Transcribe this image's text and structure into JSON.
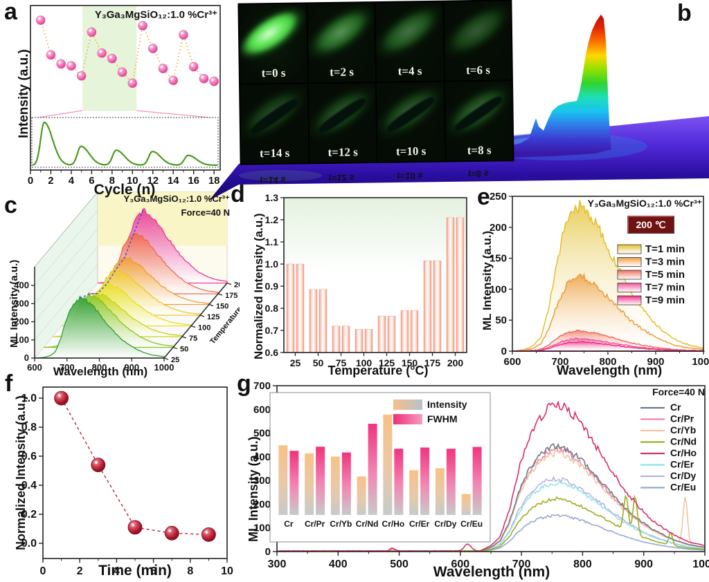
{
  "figure": {
    "panel_letters": {
      "a": "a",
      "b": "b",
      "c": "c",
      "d": "d",
      "e": "e",
      "f": "f",
      "g": "g"
    }
  },
  "panels": {
    "a": {
      "title": "Y₃Ga₃MgSiO₁₂:1.0 %Cr³⁺",
      "xlabel": "Cycle (n)",
      "ylabel": "Intensity (a.u.)"
    },
    "b": {
      "photo_labels": [
        "t=0 s",
        "t=2 s",
        "t=4 s",
        "t=6 s",
        "t=14 s",
        "t=12 s",
        "t=10 s",
        "t=8 s"
      ]
    },
    "c": {
      "formula": "Y₃Ga₃MgSiO₁₂:1.0 %Cr³⁺",
      "force": "Force=40 N",
      "xlabel": "Wavelength (nm)",
      "ylabel": "ML Intensity (a.u.)",
      "zlabel": "Temperature (°C)"
    },
    "d": {
      "xlabel": "Temperature (°C)",
      "ylabel": "Normalized Intensity (a.u.)"
    },
    "e": {
      "title": "Y₃Ga₃MgSiO₁₂:1.0 %Cr³⁺",
      "badge": "200 ℃",
      "xlabel": "Wavelength (nm)",
      "ylabel": "ML Intensity (a.u.)"
    },
    "f": {
      "xlabel": "Time (min)",
      "ylabel": "Normalized Intensity (a.u.)"
    },
    "g": {
      "force": "Force=40 N",
      "xlabel": "Wavelength (nm)",
      "ylabel": "ML Intensity (a.u.)"
    }
  },
  "chart_data": [
    {
      "panel": "a",
      "type": "scatter",
      "title": "Y₃Ga₃MgSiO₁₂:1.0 %Cr³⁺",
      "xlabel": "Cycle (n)",
      "ylabel": "Intensity (a.u.)",
      "x": [
        1,
        2,
        3,
        4,
        5,
        6,
        7,
        8,
        9,
        10,
        11,
        12,
        13,
        14,
        15,
        16,
        17,
        18
      ],
      "y": [
        0.93,
        0.55,
        0.45,
        0.43,
        0.32,
        0.8,
        0.57,
        0.51,
        0.36,
        0.24,
        0.87,
        0.62,
        0.4,
        0.27,
        0.77,
        0.42,
        0.29,
        0.26
      ],
      "xticks": [
        "0",
        "2",
        "4",
        "6",
        "8",
        "10",
        "12",
        "14",
        "16",
        "18"
      ],
      "xlim": [
        0,
        18.6
      ],
      "highlight_band": [
        5.1,
        10.4
      ],
      "marker_color": "#f45fa8",
      "line_color": "#f0a838",
      "inset": {
        "type": "line",
        "color": "#4a9a1e",
        "peak_positions": [
          1.35,
          4.95,
          8.4,
          11.95,
          15.45
        ],
        "peak_heights": [
          1.0,
          0.44,
          0.35,
          0.32,
          0.23
        ]
      }
    },
    {
      "panel": "b",
      "type": "3d-surface",
      "description": "ML intensity 3D surface over sample, jet colormap on violet plane",
      "colormap": [
        "#3a18a8",
        "#3b3ad0",
        "#2f7ae8",
        "#19c3f0",
        "#1ddfb9",
        "#2fd430",
        "#8fe000",
        "#ffd800",
        "#fb7300",
        "#e32500",
        "#b80d0d"
      ],
      "photo_labels": [
        "t=0 s",
        "t=2 s",
        "t=4 s",
        "t=6 s",
        "t=14 s",
        "t=12 s",
        "t=10 s",
        "t=8 s"
      ]
    },
    {
      "panel": "c",
      "type": "3d-waterfall",
      "xlabel": "Wavelength (nm)",
      "ylabel": "ML Intensity (a.u.)",
      "zlabel": "Temperature (°C)",
      "xlim": [
        600,
        1000
      ],
      "ylim": [
        0,
        400
      ],
      "xticks": [
        "600",
        "700",
        "800",
        "900",
        "1000"
      ],
      "yticks": [
        "0",
        "100",
        "200",
        "300",
        "400"
      ],
      "temperatures": [
        "25",
        "50",
        "75",
        "100",
        "125",
        "150",
        "175",
        "200"
      ],
      "peak_values": [
        330,
        293,
        238,
        232,
        252,
        261,
        335,
        400
      ],
      "peak_wavelength": 740,
      "colors": [
        "#2e9e2e",
        "#85c41e",
        "#c6d414",
        "#e6de1e",
        "#eec62a",
        "#f09c32",
        "#ee6a4e",
        "#e83a92"
      ],
      "annotations": [
        "Y₃Ga₃MgSiO₁₂:1.0 %Cr³⁺",
        "Force=40 N"
      ]
    },
    {
      "panel": "d",
      "type": "bar",
      "xlabel": "Temperature (°C)",
      "ylabel": "Normalized Intensity (a.u.)",
      "categories": [
        "25",
        "50",
        "75",
        "100",
        "125",
        "150",
        "175",
        "200"
      ],
      "values": [
        1.0,
        0.885,
        0.72,
        0.705,
        0.765,
        0.79,
        1.015,
        1.21
      ],
      "ylim": [
        0.6,
        1.3
      ],
      "yticks": [
        "0.6",
        "0.7",
        "0.8",
        "0.9",
        "1.0",
        "1.1",
        "1.2",
        "1.3"
      ],
      "bar_color": "#f19a80"
    },
    {
      "panel": "e",
      "type": "area",
      "title": "Y₃Ga₃MgSiO₁₂:1.0 %Cr³⁺",
      "badge": "200 ℃",
      "xlabel": "Wavelength (nm)",
      "ylabel": "ML Intensity (a.u.)",
      "xlim": [
        600,
        1000
      ],
      "ylim": [
        0,
        250
      ],
      "xticks": [
        "600",
        "700",
        "800",
        "900",
        "1000"
      ],
      "yticks": [
        "0",
        "50",
        "100",
        "150",
        "200",
        "250"
      ],
      "peak_wavelength": 737,
      "series": [
        {
          "name": "T=1 min",
          "peak": 235,
          "color": "#e2bf2b"
        },
        {
          "name": "T=3 min",
          "peak": 122,
          "color": "#ec9b3b"
        },
        {
          "name": "T=5 min",
          "peak": 33,
          "color": "#ef6f5a"
        },
        {
          "name": "T=7 min",
          "peak": 20,
          "color": "#f2539c"
        },
        {
          "name": "T=9 min",
          "peak": 15,
          "color": "#ee2d87"
        }
      ]
    },
    {
      "panel": "f",
      "type": "scatter",
      "xlabel": "Time (min)",
      "ylabel": "Normalized Intensity (a.u.)",
      "x": [
        1,
        3,
        5,
        7,
        9
      ],
      "y": [
        1.0,
        0.54,
        0.11,
        0.07,
        0.06
      ],
      "xlim": [
        0,
        10
      ],
      "xticks": [
        "0",
        "2",
        "4",
        "6",
        "8",
        "10"
      ],
      "yticks": [
        "0.0",
        "0.2",
        "0.4",
        "0.6",
        "0.8",
        "1.0"
      ],
      "marker_color": "#b5122a"
    },
    {
      "panel": "g",
      "type": "line",
      "annotation": "Force=40 N",
      "xlabel": "Wavelength (nm)",
      "ylabel": "ML Intensity (a.u.)",
      "xlim": [
        300,
        1000
      ],
      "ylim": [
        0,
        700
      ],
      "xticks": [
        "300",
        "400",
        "500",
        "600",
        "700",
        "800",
        "900",
        "1000"
      ],
      "yticks": [
        "0",
        "100",
        "200",
        "300",
        "400",
        "500",
        "600",
        "700"
      ],
      "peak_wavelength": 757,
      "series": [
        {
          "name": "Cr",
          "peak": 445,
          "color": "#6b7b84",
          "spikes": []
        },
        {
          "name": "Cr/Pr",
          "peak": 432,
          "color": "#ef7fb2",
          "spikes": [
            [
              489,
              8,
              5
            ]
          ]
        },
        {
          "name": "Cr/Yb",
          "peak": 418,
          "color": "#f4c39c",
          "spikes": [
            [
              968,
              200,
              5
            ]
          ]
        },
        {
          "name": "Cr/Nd",
          "peak": 222,
          "color": "#9cad20",
          "spikes": [
            [
              871,
              150,
              5
            ],
            [
              886,
              160,
              5
            ],
            [
              944,
              55,
              4
            ]
          ]
        },
        {
          "name": "Cr/Ho",
          "peak": 622,
          "color": "#d62e66",
          "spikes": [
            [
              612,
              30,
              8
            ],
            [
              489,
              12,
              6
            ]
          ]
        },
        {
          "name": "Cr/Er",
          "peak": 292,
          "color": "#8fe3ec",
          "spikes": []
        },
        {
          "name": "Cr/Dy",
          "peak": 308,
          "color": "#bab3de",
          "spikes": []
        },
        {
          "name": "Cr/Eu",
          "peak": 153,
          "color": "#93a8d4",
          "spikes": []
        }
      ],
      "inset": {
        "type": "grouped-bar",
        "categories": [
          "Cr",
          "Cr/Pr",
          "Cr/Yb",
          "Cr/Nd",
          "Cr/Ho",
          "Cr/Er",
          "Cr/Dy",
          "Cr/Eu"
        ],
        "baseline_value": 130,
        "series": [
          {
            "name": "Intensity",
            "values": [
              470,
              430,
              415,
              318,
              620,
              348,
              358,
              232
            ],
            "color": "#f7bd89"
          },
          {
            "name": "FWHM",
            "values": [
              443,
              463,
              435,
              575,
              453,
              459,
              453,
              462
            ],
            "color": "#f0347e"
          }
        ]
      }
    }
  ]
}
